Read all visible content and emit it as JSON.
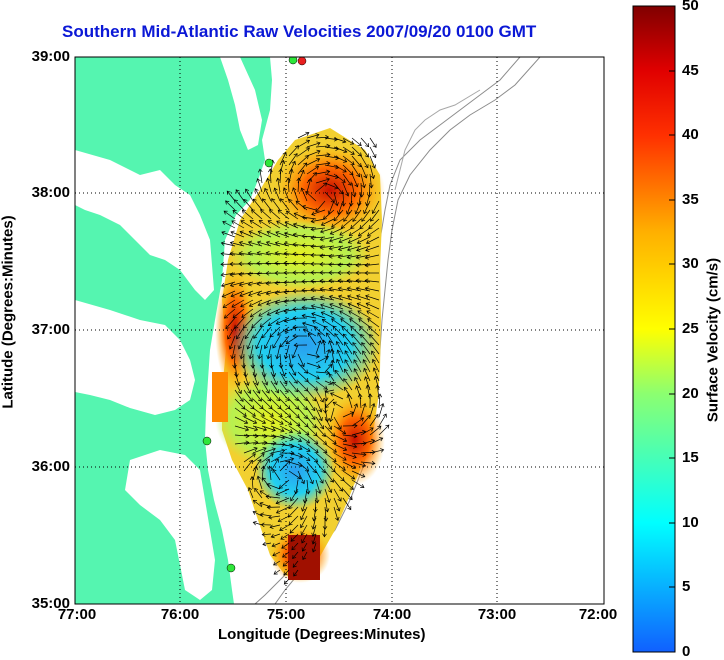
{
  "title": "Southern Mid-Atlantic Raw Velocities 2007/09/20 0100 GMT",
  "x_axis": {
    "label": "Longitude (Degrees:Minutes)",
    "ticks": [
      "77:00",
      "76:00",
      "75:00",
      "74:00",
      "73:00",
      "72:00"
    ]
  },
  "y_axis": {
    "label": "Latitude (Degrees:Minutes)",
    "ticks": [
      "39:00",
      "38:00",
      "37:00",
      "36:00",
      "35:00"
    ]
  },
  "colorbar": {
    "label": "Surface Velocity (cm/s)",
    "ticks": [
      "50",
      "45",
      "40",
      "35",
      "30",
      "25",
      "20",
      "15",
      "10",
      "5",
      "0"
    ],
    "min": 0,
    "max": 50
  },
  "colors": {
    "land": "#55f5b0",
    "title": "#0b18d6",
    "station": "#2ee63a",
    "station_alt": "#e82020"
  },
  "chart_data": {
    "type": "heatmap",
    "title": "Southern Mid-Atlantic Raw Velocities 2007/09/20 0100 GMT",
    "xlabel": "Longitude (Degrees:Minutes)",
    "ylabel": "Latitude (Degrees:Minutes)",
    "xlim": [
      -77,
      -72
    ],
    "ylim": [
      35,
      39
    ],
    "units": "cm/s",
    "value_range": [
      0,
      50
    ],
    "stations": [
      {
        "lon": -74.87,
        "lat": 38.96
      },
      {
        "lon": -74.83,
        "lat": 38.95
      },
      {
        "lon": -75.14,
        "lat": 38.22
      },
      {
        "lon": -75.73,
        "lat": 36.18
      },
      {
        "lon": -75.49,
        "lat": 35.22
      }
    ]
  }
}
